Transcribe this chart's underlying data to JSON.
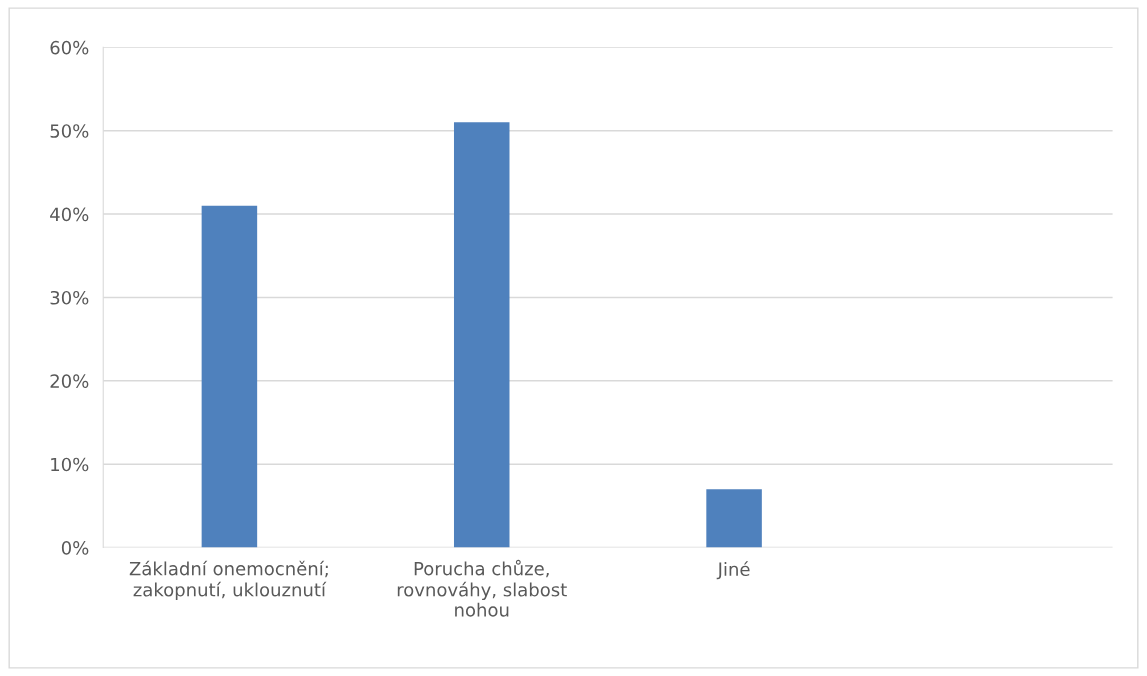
{
  "chart_data": {
    "type": "bar",
    "categories": [
      "Základní onemocnění; zakopnutí, uklouznutí",
      "Porucha chůze, rovnováhy, slabost nohou",
      "Jiné"
    ],
    "values": [
      0.41,
      0.51,
      0.07
    ],
    "color": "#4f81bd",
    "ylim": [
      0,
      0.6
    ],
    "yticks": [
      {
        "value": 0,
        "label": "0%"
      },
      {
        "value": 0.1,
        "label": "10%"
      },
      {
        "value": 0.2,
        "label": "20%"
      },
      {
        "value": 0.3,
        "label": "30%"
      },
      {
        "value": 0.4,
        "label": "40%"
      },
      {
        "value": 0.5,
        "label": "50%"
      },
      {
        "value": 0.6,
        "label": "60%"
      }
    ],
    "grid": "y",
    "legend": false
  }
}
